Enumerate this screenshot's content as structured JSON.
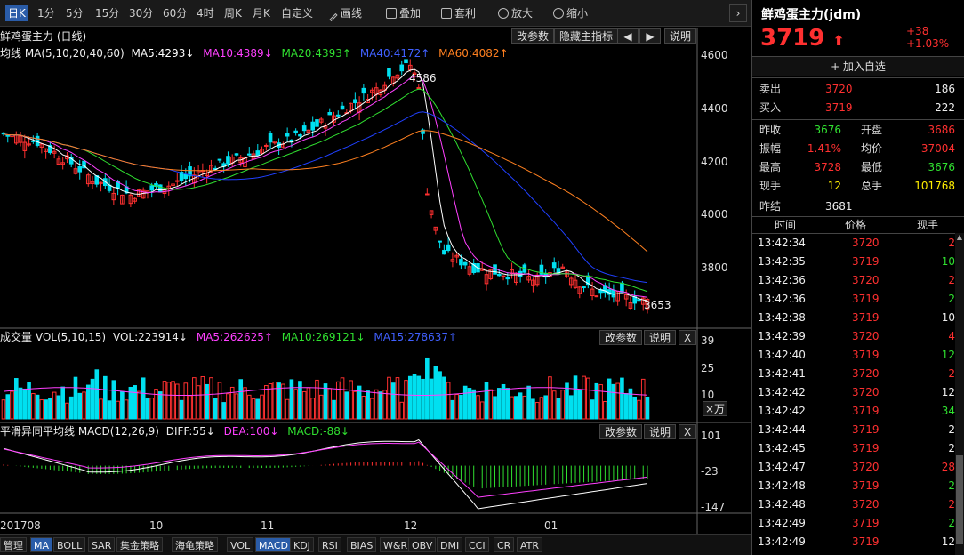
{
  "toolbar": {
    "items": [
      "日K",
      "1分",
      "5分",
      "15分",
      "30分",
      "60分",
      "4时",
      "周K",
      "月K",
      "自定义",
      "画线",
      "叠加",
      "套利",
      "放大",
      "缩小"
    ]
  },
  "main": {
    "title": "鲜鸡蛋主力 (日线)",
    "ma_legend": {
      "label": "均线 MA(5,10,20,40,60)",
      "ma5": "MA5:4293↓",
      "ma10": "MA10:4389↓",
      "ma20": "MA20:4393↑",
      "ma40": "MA40:4172↑",
      "ma60": "MA60:4082↑"
    },
    "buttons": {
      "params": "改参数",
      "hide": "隐藏主指标",
      "left": "🡄",
      "right": "🡆",
      "help": "说明"
    },
    "high_label": "4586",
    "low_label": "3653",
    "yticks": [
      "4600",
      "4400",
      "4200",
      "4000",
      "3800"
    ]
  },
  "volume": {
    "legend": "成交量 VOL(5,10,15)",
    "vol": "VOL:223914↓",
    "ma5": "MA5:262625↑",
    "ma10": "MA10:269121↓",
    "ma15": "MA15:278637↑",
    "params": "改参数",
    "help": "说明",
    "close": "X",
    "yticks": [
      "39",
      "25",
      "10"
    ],
    "unit": "×万"
  },
  "macd": {
    "legend": "平滑异同平均线 MACD(12,26,9)",
    "diff": "DIFF:55↓",
    "dea": "DEA:100↓",
    "macdv": "MACD:-88↓",
    "params": "改参数",
    "help": "说明",
    "close": "X",
    "yticks": [
      "101",
      "-23",
      "-147"
    ]
  },
  "xaxis": {
    "labels": [
      "201708",
      "10",
      "11",
      "12",
      "01"
    ]
  },
  "bottom": {
    "items": [
      "管理",
      "MA",
      "BOLL",
      "SAR",
      "集金策略",
      "海龟策略",
      "VOL",
      "MACD",
      "KDJ",
      "RSI",
      "BIAS",
      "W&R",
      "OBV",
      "DMI",
      "CCI",
      "CR",
      "ATR"
    ]
  },
  "quote": {
    "name": "鲜鸡蛋主力(jdm)",
    "price": "3719",
    "arrow": "⬆",
    "change": "+38",
    "pct": "+1.03%",
    "add": "+ 加入自选",
    "sell_label": "卖出",
    "sell_price": "3720",
    "sell_vol": "186",
    "buy_label": "买入",
    "buy_price": "3719",
    "buy_vol": "222",
    "stats": [
      {
        "l1": "昨收",
        "v1": "3676",
        "l2": "开盘",
        "v2": "3686"
      },
      {
        "l1": "振幅",
        "v1": "1.41%",
        "l2": "均价",
        "v2": "37004"
      },
      {
        "l1": "最高",
        "v1": "3728",
        "l2": "最低",
        "v2": "3676"
      },
      {
        "l1": "现手",
        "v1": "12",
        "l2": "总手",
        "v2": "101768"
      }
    ],
    "settle_label": "昨结",
    "settle": "3681",
    "ticks_header": {
      "time": "时间",
      "price": "价格",
      "vol": "现手"
    },
    "ticks": [
      {
        "t": "13:42:34",
        "p": "3720",
        "v": "2",
        "vc": "red"
      },
      {
        "t": "13:42:35",
        "p": "3719",
        "v": "10",
        "vc": "green"
      },
      {
        "t": "13:42:36",
        "p": "3720",
        "v": "2",
        "vc": "red"
      },
      {
        "t": "13:42:36",
        "p": "3719",
        "v": "2",
        "vc": "green"
      },
      {
        "t": "13:42:38",
        "p": "3719",
        "v": "10",
        "vc": "white"
      },
      {
        "t": "13:42:39",
        "p": "3720",
        "v": "4",
        "vc": "red"
      },
      {
        "t": "13:42:40",
        "p": "3719",
        "v": "12",
        "vc": "green"
      },
      {
        "t": "13:42:41",
        "p": "3720",
        "v": "2",
        "vc": "red"
      },
      {
        "t": "13:42:42",
        "p": "3720",
        "v": "12",
        "vc": "white"
      },
      {
        "t": "13:42:42",
        "p": "3719",
        "v": "34",
        "vc": "green"
      },
      {
        "t": "13:42:44",
        "p": "3719",
        "v": "2",
        "vc": "white"
      },
      {
        "t": "13:42:45",
        "p": "3719",
        "v": "2",
        "vc": "white"
      },
      {
        "t": "13:42:47",
        "p": "3720",
        "v": "28",
        "vc": "red"
      },
      {
        "t": "13:42:48",
        "p": "3719",
        "v": "2",
        "vc": "green"
      },
      {
        "t": "13:42:48",
        "p": "3720",
        "v": "2",
        "vc": "red"
      },
      {
        "t": "13:42:49",
        "p": "3719",
        "v": "2",
        "vc": "green"
      },
      {
        "t": "13:42:49",
        "p": "3719",
        "v": "12",
        "vc": "white"
      }
    ]
  },
  "colors": {
    "up": "#ff3030",
    "down": "#00e0f0",
    "ma5": "#ffffff",
    "ma10": "#ff40ff",
    "ma20": "#30e030",
    "ma40": "#2040ff",
    "ma60": "#ff8020"
  }
}
